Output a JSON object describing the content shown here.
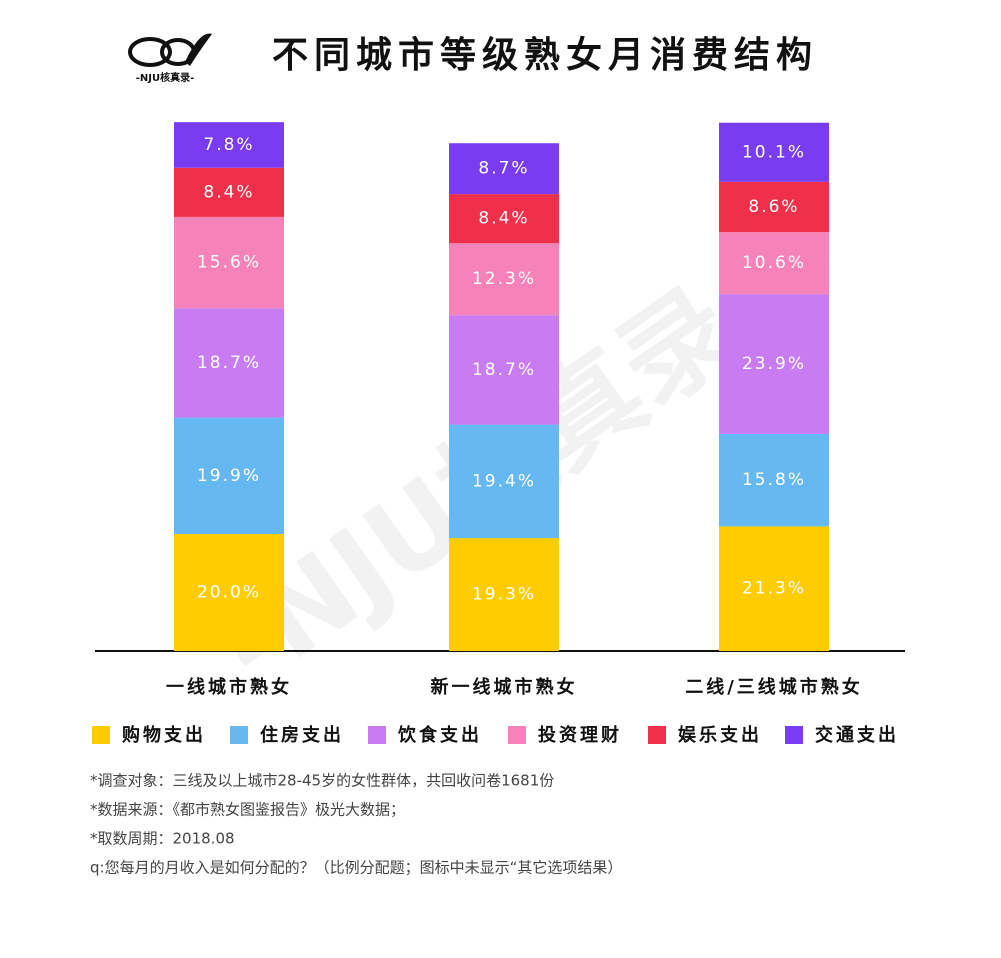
{
  "logo": {
    "text": "-NJU核真录-"
  },
  "chart_data": {
    "type": "stacked-bar",
    "title": "不同城市等级熟女月消费结构",
    "categories": [
      "一线城市熟女",
      "新一线城市熟女",
      "二线/三线城市熟女"
    ],
    "series": [
      {
        "name": "购物支出",
        "color": "#ffcc00",
        "values": [
          20.0,
          19.3,
          21.3
        ],
        "value_labels": [
          "20.0%",
          "19.3%",
          "21.3%"
        ]
      },
      {
        "name": "住房支出",
        "color": "#66b8f2",
        "values": [
          19.9,
          19.4,
          15.8
        ],
        "value_labels": [
          "19.9%",
          "19.4%",
          "15.8%"
        ]
      },
      {
        "name": "饮食支出",
        "color": "#c97bf2",
        "values": [
          18.7,
          18.7,
          23.9
        ],
        "value_labels": [
          "18.7%",
          "18.7%",
          "23.9%"
        ]
      },
      {
        "name": "投资理财",
        "color": "#f582b8",
        "values": [
          15.6,
          12.3,
          10.6
        ],
        "value_labels": [
          "15.6%",
          "12.3%",
          "10.6%"
        ]
      },
      {
        "name": "娱乐支出",
        "color": "#f0304a",
        "values": [
          8.4,
          8.4,
          8.6
        ],
        "value_labels": [
          "8.4%",
          "8.4%",
          "8.6%"
        ]
      },
      {
        "name": "交通支出",
        "color": "#7a3cf0",
        "values": [
          7.8,
          8.7,
          10.1
        ],
        "value_labels": [
          "7.8%",
          "8.7%",
          "10.1%"
        ]
      }
    ],
    "notes": [
      "*调查对象：三线及以上城市28-45岁的女性群体，共回收问卷1681份",
      "*数据来源：《都市熟女图鉴报告》极光大数据；",
      "*取数周期：2018.08",
      "q:您每月的月收入是如何分配的？（比例分配题；图标中未显示“其它选项结果）"
    ]
  }
}
